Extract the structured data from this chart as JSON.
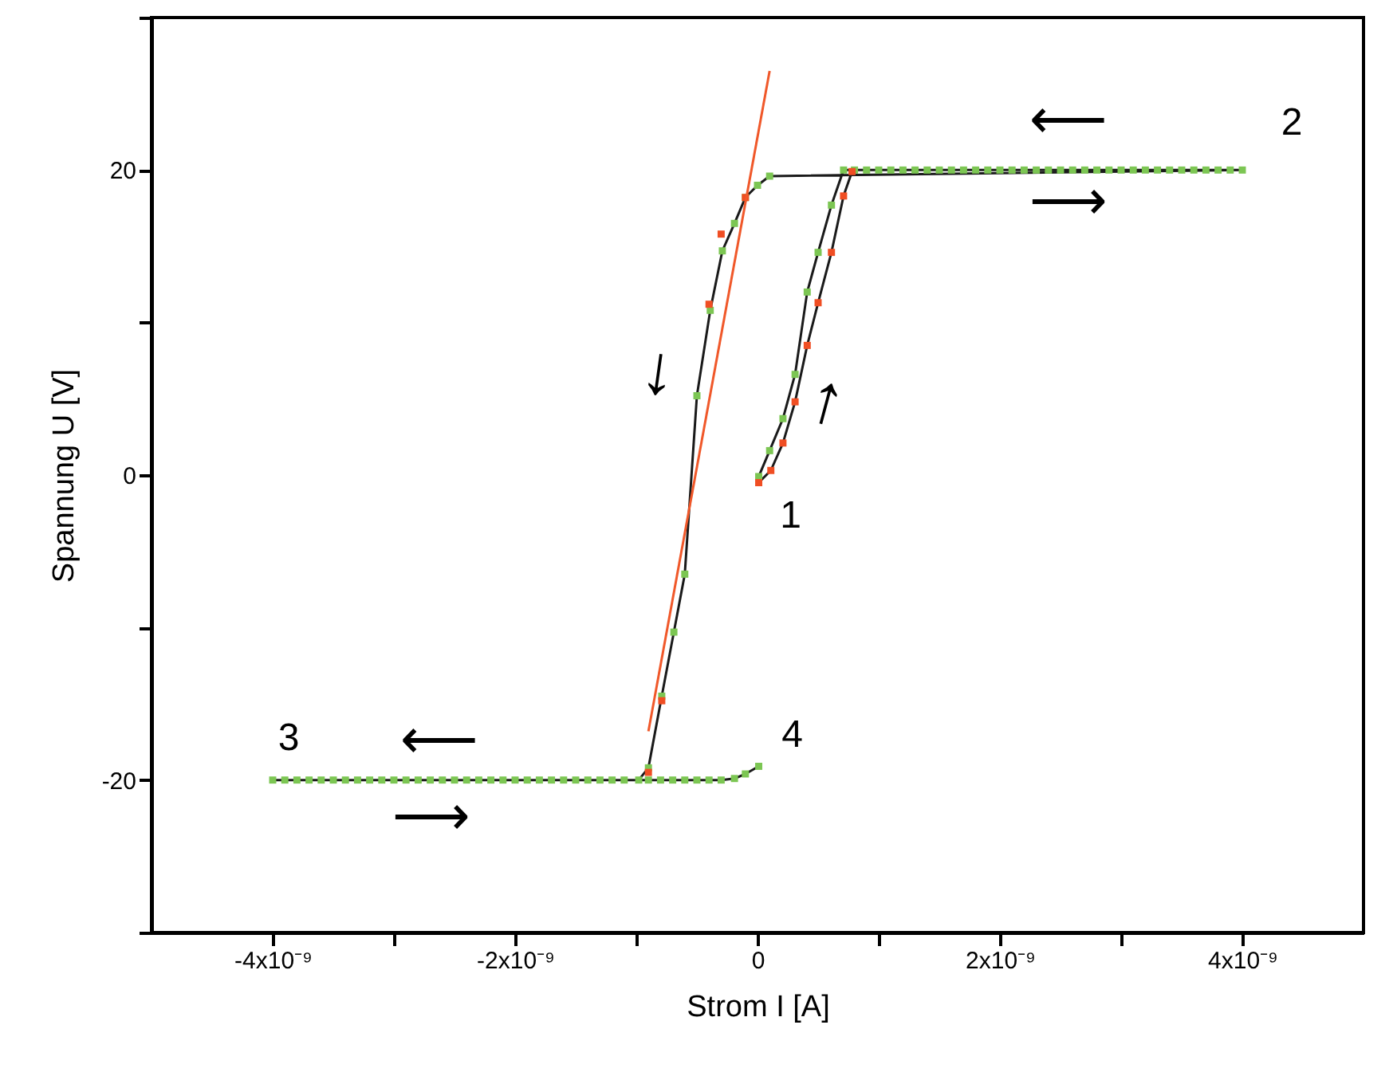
{
  "chart_data": {
    "type": "line",
    "xlabel": "Strom I [A]",
    "ylabel": "Spannung U [V]",
    "xlim": [
      -5e-09,
      5e-09
    ],
    "ylim": [
      -30,
      30
    ],
    "xticks": [
      {
        "value": -4e-09,
        "label": "-4x10⁻⁹"
      },
      {
        "value": -3e-09,
        "label": null
      },
      {
        "value": -2e-09,
        "label": "-2x10⁻⁹"
      },
      {
        "value": -1e-09,
        "label": null
      },
      0,
      {
        "value": 1e-09,
        "label": null
      },
      {
        "value": 2e-09,
        "label": "2x10⁻⁹"
      },
      {
        "value": 3e-09,
        "label": null
      },
      {
        "value": 4e-09,
        "label": "4x10⁻⁹"
      }
    ],
    "yticks": [
      {
        "value": -30,
        "label": null
      },
      -20,
      {
        "value": -10,
        "label": null
      },
      0,
      {
        "value": 10,
        "label": null
      },
      20,
      {
        "value": 30,
        "label": null
      }
    ],
    "grid": false,
    "series": [
      {
        "color": "#1a1a1a",
        "marker": "none",
        "x": [
          1e-11,
          1e-10,
          2.1e-10,
          3.1e-10,
          4.1e-10,
          5e-10,
          6.1e-10,
          7.1e-10,
          8e-10,
          9e-10,
          1e-09,
          1.1e-09,
          1.2e-09,
          1.3e-09,
          1.4e-09,
          1.5e-09,
          1.6e-09,
          1.7e-09,
          1.8e-09,
          1.9e-09,
          2e-09,
          2.1e-09,
          2.2e-09,
          2.3e-09,
          2.4e-09,
          2.5e-09,
          2.6e-09,
          2.7e-09,
          2.8e-09,
          2.9e-09,
          3e-09,
          3.1e-09,
          3.2e-09,
          3.3e-09,
          3.4e-09,
          3.5e-09,
          3.6e-09,
          3.7e-09,
          3.8e-09,
          3.9e-09,
          4e-09,
          1e-10,
          0.0,
          -1e-10,
          -1.9e-10,
          -2.9e-10,
          -3.9e-10,
          -5e-10,
          -6e-10,
          -6.9e-10,
          -7.9e-10,
          -9e-10,
          -9.8e-10,
          -1.1e-09,
          -1.2e-09,
          -1.3e-09,
          -1.4e-09,
          -1.5e-09,
          -1.6e-09,
          -1.7e-09,
          -1.8e-09,
          -1.9e-09,
          -2e-09,
          -2.1e-09,
          -2.2e-09,
          -2.3e-09,
          -2.4e-09,
          -2.5e-09,
          -2.6e-09,
          -2.7e-09,
          -2.8e-09,
          -2.9e-09,
          -3e-09,
          -3.1e-09,
          -3.2e-09,
          -3.3e-09,
          -3.4e-09,
          -3.5e-09,
          -3.6e-09,
          -3.7e-09,
          -3.8e-09,
          -3.9e-09,
          -4e-09,
          -9e-10,
          -8e-10,
          -7e-10,
          -6e-10,
          -5e-10,
          -4e-10,
          -3e-10,
          -1.9e-10,
          -1e-10,
          1e-11
        ],
        "values": [
          -0.1,
          1.6,
          3.7,
          6.6,
          12.0,
          14.6,
          17.7,
          20,
          20,
          20,
          20,
          20,
          20,
          20,
          20,
          20,
          20,
          20,
          20,
          20,
          20,
          20,
          20,
          20,
          20,
          20,
          20,
          20,
          20,
          20,
          20,
          20,
          20,
          20,
          20,
          20,
          20,
          20,
          20,
          20,
          20,
          19.6,
          19.0,
          18.2,
          16.5,
          14.7,
          10.8,
          5.2,
          -6.5,
          -10.3,
          -14.5,
          -19.2,
          -20,
          -20,
          -20,
          -20,
          -20,
          -20,
          -20,
          -20,
          -20,
          -20,
          -20,
          -20,
          -20,
          -20,
          -20,
          -20,
          -20,
          -20,
          -20,
          -20,
          -20,
          -20,
          -20,
          -20,
          -20,
          -20,
          -20,
          -20,
          -20,
          -20,
          -20,
          -20,
          -20,
          -20,
          -20,
          -20,
          -20,
          -20,
          -19.9,
          -19.6,
          -19.1
        ]
      },
      {
        "color": "#1a1a1a",
        "marker": "none",
        "x": [
          1e-11,
          1.1e-10,
          2.1e-10,
          3.1e-10,
          4.1e-10,
          5e-10,
          6.1e-10,
          7.1e-10,
          7.8e-10
        ],
        "values": [
          -0.5,
          0.3,
          2.1,
          4.8,
          8.5,
          11.3,
          14.6,
          18.3,
          19.9
        ]
      },
      {
        "type": "scatter",
        "color": "#7cc653",
        "marker": "square",
        "x": [
          1e-11,
          1e-10,
          2.1e-10,
          3.1e-10,
          4.1e-10,
          5e-10,
          6.1e-10,
          7.1e-10,
          8e-10,
          9e-10,
          1e-09,
          1.1e-09,
          1.2e-09,
          1.3e-09,
          1.4e-09,
          1.5e-09,
          1.6e-09,
          1.7e-09,
          1.8e-09,
          1.9e-09,
          2e-09,
          2.1e-09,
          2.2e-09,
          2.3e-09,
          2.4e-09,
          2.5e-09,
          2.6e-09,
          2.7e-09,
          2.8e-09,
          2.9e-09,
          3e-09,
          3.1e-09,
          3.2e-09,
          3.3e-09,
          3.4e-09,
          3.5e-09,
          3.6e-09,
          3.7e-09,
          3.8e-09,
          3.9e-09,
          4e-09,
          1e-10,
          0.0,
          -1e-10,
          -1.9e-10,
          -2.9e-10,
          -3.9e-10,
          -5e-10,
          -6e-10,
          -6.9e-10,
          -7.9e-10,
          -9e-10,
          -9.8e-10,
          -1.1e-09,
          -1.2e-09,
          -1.3e-09,
          -1.4e-09,
          -1.5e-09,
          -1.6e-09,
          -1.7e-09,
          -1.8e-09,
          -1.9e-09,
          -2e-09,
          -2.1e-09,
          -2.2e-09,
          -2.3e-09,
          -2.4e-09,
          -2.5e-09,
          -2.6e-09,
          -2.7e-09,
          -2.8e-09,
          -2.9e-09,
          -3e-09,
          -3.1e-09,
          -3.2e-09,
          -3.3e-09,
          -3.4e-09,
          -3.5e-09,
          -3.6e-09,
          -3.7e-09,
          -3.8e-09,
          -3.9e-09,
          -4e-09,
          -9e-10,
          -8e-10,
          -7e-10,
          -6e-10,
          -5e-10,
          -4e-10,
          -3e-10,
          -1.9e-10,
          -1e-10,
          1e-11
        ],
        "values": [
          -0.1,
          1.6,
          3.7,
          6.6,
          12.0,
          14.6,
          17.7,
          20,
          20,
          20,
          20,
          20,
          20,
          20,
          20,
          20,
          20,
          20,
          20,
          20,
          20,
          20,
          20,
          20,
          20,
          20,
          20,
          20,
          20,
          20,
          20,
          20,
          20,
          20,
          20,
          20,
          20,
          20,
          20,
          20,
          20,
          19.6,
          19.0,
          18.2,
          16.5,
          14.7,
          10.8,
          5.2,
          -6.5,
          -10.3,
          -14.5,
          -19.2,
          -20,
          -20,
          -20,
          -20,
          -20,
          -20,
          -20,
          -20,
          -20,
          -20,
          -20,
          -20,
          -20,
          -20,
          -20,
          -20,
          -20,
          -20,
          -20,
          -20,
          -20,
          -20,
          -20,
          -20,
          -20,
          -20,
          -20,
          -20,
          -20,
          -20,
          -20,
          -20,
          -20,
          -20,
          -20,
          -20,
          -20,
          -20,
          -19.9,
          -19.6,
          -19.1
        ]
      },
      {
        "type": "scatter",
        "color": "#f04e23",
        "marker": "square",
        "x": [
          1e-11,
          1.1e-10,
          2.1e-10,
          3.1e-10,
          4.1e-10,
          5e-10,
          6.1e-10,
          7.1e-10,
          7.8e-10,
          -1e-10,
          -3e-10,
          -4e-10,
          -7.9e-10,
          -9e-10
        ],
        "values": [
          -0.5,
          0.3,
          2.1,
          4.8,
          8.5,
          11.3,
          14.6,
          18.3,
          19.9,
          18.2,
          15.8,
          11.2,
          -14.8,
          -19.5
        ]
      },
      {
        "color": "#f0582a",
        "marker": "none",
        "x": [
          -9e-10,
          1e-10
        ],
        "values": [
          -16.8,
          26.5
        ]
      }
    ],
    "annotations": [
      {
        "text": "1",
        "x": 1e-11,
        "y": -0.1
      },
      {
        "text": "2",
        "x": 4e-09,
        "y": 20
      },
      {
        "text": "3",
        "x": -4e-09,
        "y": -20
      },
      {
        "text": "4",
        "x": 1e-11,
        "y": -19.1
      },
      {
        "text": "⟵",
        "x": 2.5e-09,
        "y": 20
      },
      {
        "text": "⟶",
        "x": 2.5e-09,
        "y": 20
      },
      {
        "text": "⟵",
        "x": -2.6e-09,
        "y": -20
      },
      {
        "text": "⟶",
        "x": -2.6e-09,
        "y": -20
      },
      {
        "text": "↓",
        "x": -5e-10,
        "y": 5.2
      },
      {
        "text": "↑",
        "x": 4.1e-10,
        "y": 8.5
      }
    ]
  }
}
